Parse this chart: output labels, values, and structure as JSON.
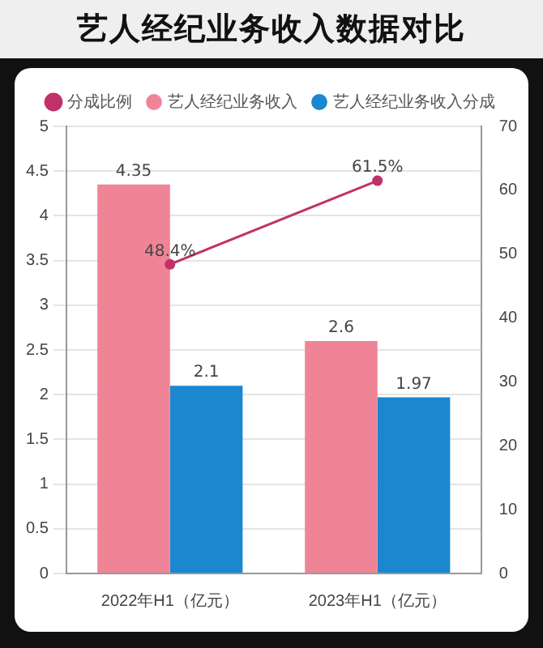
{
  "chart_data": {
    "type": "bar",
    "title": "艺人经纪业务收入数据对比",
    "categories": [
      "2022年H1（亿元）",
      "2023年H1（亿元）"
    ],
    "series": [
      {
        "name": "分成比例",
        "type": "line",
        "axis": "y2",
        "color": "#c2306a",
        "values": [
          48.4,
          61.5
        ],
        "value_labels": [
          "48.4%",
          "61.5%"
        ]
      },
      {
        "name": "艺人经纪业务收入",
        "color": "#f08497",
        "values": [
          4.35,
          2.6
        ],
        "value_labels": [
          "4.35",
          "2.6"
        ]
      },
      {
        "name": "艺人经纪业务收入分成",
        "color": "#1a87d0",
        "values": [
          2.1,
          1.97
        ],
        "value_labels": [
          "2.1",
          "1.97"
        ]
      }
    ],
    "ylim": [
      0,
      5
    ],
    "yticks": [
      0,
      0.5,
      1,
      1.5,
      2,
      2.5,
      3,
      3.5,
      4,
      4.5,
      5
    ],
    "y2lim": [
      0,
      70
    ],
    "y2ticks": [
      0,
      10,
      20,
      30,
      40,
      50,
      60,
      70
    ],
    "grid": "y",
    "legend": "top",
    "marker": "circle"
  }
}
